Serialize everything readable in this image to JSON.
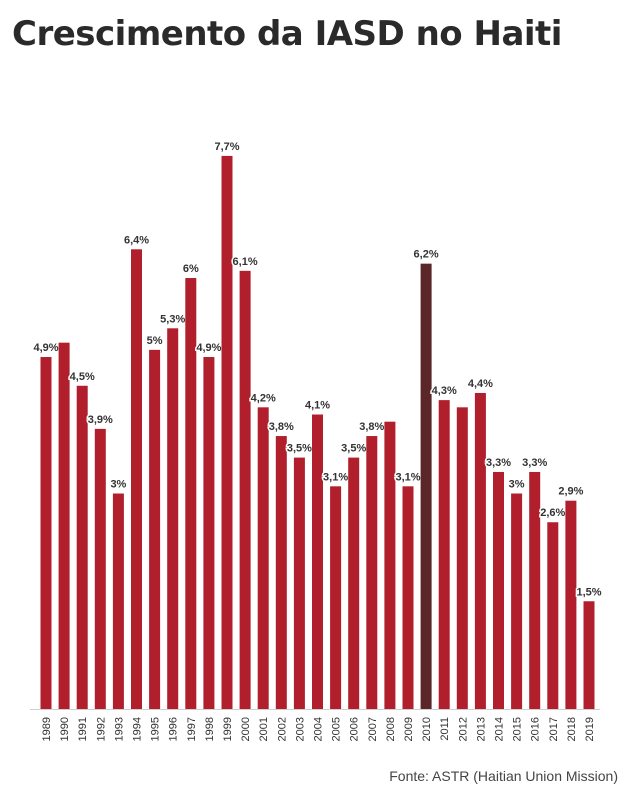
{
  "title": "Crescimento da IASD no Haiti",
  "source": "Fonte: ASTR (Haitian Union Mission)",
  "colors": {
    "bar": "#B01F2B",
    "highlight": "#5A2628",
    "label": "#333333"
  },
  "chart_data": {
    "type": "bar",
    "title": "Crescimento da IASD no Haiti",
    "xlabel": "",
    "ylabel": "",
    "ylim": [
      0,
      8.2
    ],
    "grid": false,
    "highlight_category": "2010",
    "categories": [
      "1989",
      "1990",
      "1991",
      "1992",
      "1993",
      "1994",
      "1995",
      "1996",
      "1997",
      "1998",
      "1999",
      "2000",
      "2001",
      "2002",
      "2003",
      "2004",
      "2005",
      "2006",
      "2007",
      "2008",
      "2009",
      "2010",
      "2011",
      "2012",
      "2013",
      "2014",
      "2015",
      "2016",
      "2017",
      "2018",
      "2019"
    ],
    "values": [
      4.9,
      5.1,
      4.5,
      3.9,
      3,
      6.4,
      5,
      5.3,
      6,
      4.9,
      7.7,
      6.1,
      4.2,
      3.8,
      3.5,
      4.1,
      3.1,
      3.5,
      3.8,
      4,
      3.1,
      6.2,
      4.3,
      4.2,
      4.4,
      3.3,
      3,
      3.3,
      2.6,
      2.9,
      1.5
    ],
    "data_labels": [
      "4,9%",
      "",
      "4,5%",
      "3,9%",
      "3%",
      "6,4%",
      "5%",
      "5,3%",
      "6%",
      "4,9%",
      "7,7%",
      "6,1%",
      "4,2%",
      "3,8%",
      "3,5%",
      "4,1%",
      "3,1%",
      "3,5%",
      "3,8%",
      "",
      "3,1%",
      "6,2%",
      "4,3%",
      "",
      "4,4%",
      "3,3%",
      "3%",
      "3,3%",
      "2,6%",
      "2,9%",
      "1,5%"
    ]
  }
}
